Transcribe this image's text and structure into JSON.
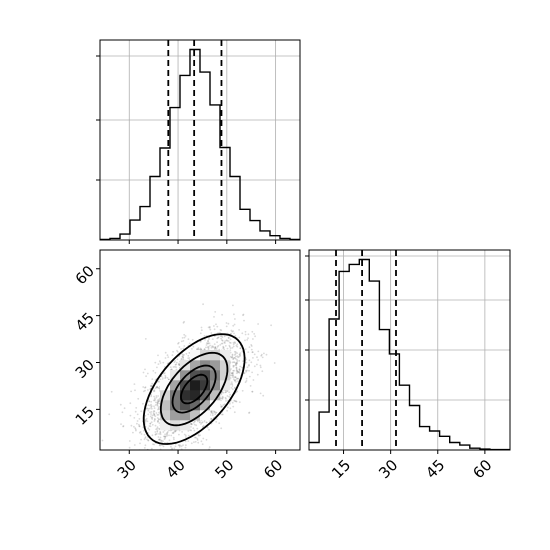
{
  "chart_data": [
    {
      "panel": "marginal-x",
      "type": "histogram",
      "title": "",
      "xlabel": "",
      "ylabel": "",
      "grid": true,
      "xlim": [
        24,
        65
      ],
      "x_ticks": [
        30,
        40,
        50,
        60
      ],
      "bins": {
        "edges": [
          24,
          26.05,
          28.1,
          30.15,
          32.2,
          34.25,
          36.3,
          38.35,
          40.4,
          42.45,
          44.5,
          46.55,
          48.6,
          50.65,
          52.7,
          54.75,
          56.8,
          58.85,
          60.9,
          62.95,
          65
        ],
        "counts": [
          1,
          3,
          11,
          37,
          62,
          118,
          171,
          246,
          306,
          354,
          312,
          251,
          172,
          118,
          57,
          36,
          17,
          8,
          3,
          1
        ]
      },
      "quantile_lines": [
        38.0,
        43.3,
        48.9
      ]
    },
    {
      "panel": "marginal-y",
      "type": "histogram",
      "title": "",
      "xlabel": "",
      "ylabel": "",
      "grid": true,
      "xlim": [
        4,
        68
      ],
      "x_ticks": [
        15,
        30,
        45,
        60
      ],
      "bins": {
        "edges": [
          4,
          7.2,
          10.4,
          13.6,
          16.8,
          20,
          23.2,
          26.4,
          29.6,
          32.8,
          36,
          39.2,
          42.4,
          45.6,
          48.8,
          52,
          55.2,
          58.4,
          61.6,
          64.8,
          68
        ],
        "counts": [
          17,
          86,
          297,
          405,
          421,
          432,
          383,
          273,
          218,
          147,
          101,
          53,
          43,
          31,
          17,
          11,
          4,
          2,
          1,
          1
        ]
      },
      "quantile_lines": [
        12.6,
        20.9,
        31.7
      ]
    },
    {
      "panel": "joint",
      "type": "heatmap",
      "title": "",
      "xlabel": "",
      "ylabel": "",
      "xlim": [
        24,
        65
      ],
      "ylim": [
        2,
        66
      ],
      "x_ticks": [
        30,
        40,
        50,
        60
      ],
      "y_ticks": [
        15,
        30,
        45,
        60
      ],
      "distribution": {
        "mean": [
          43.3,
          21.5
        ],
        "sd": [
          5.0,
          8.5
        ],
        "correlation": 0.55
      },
      "contour_levels": [
        "0.5-sigma",
        "1-sigma",
        "1.5-sigma",
        "2-sigma"
      ]
    }
  ]
}
